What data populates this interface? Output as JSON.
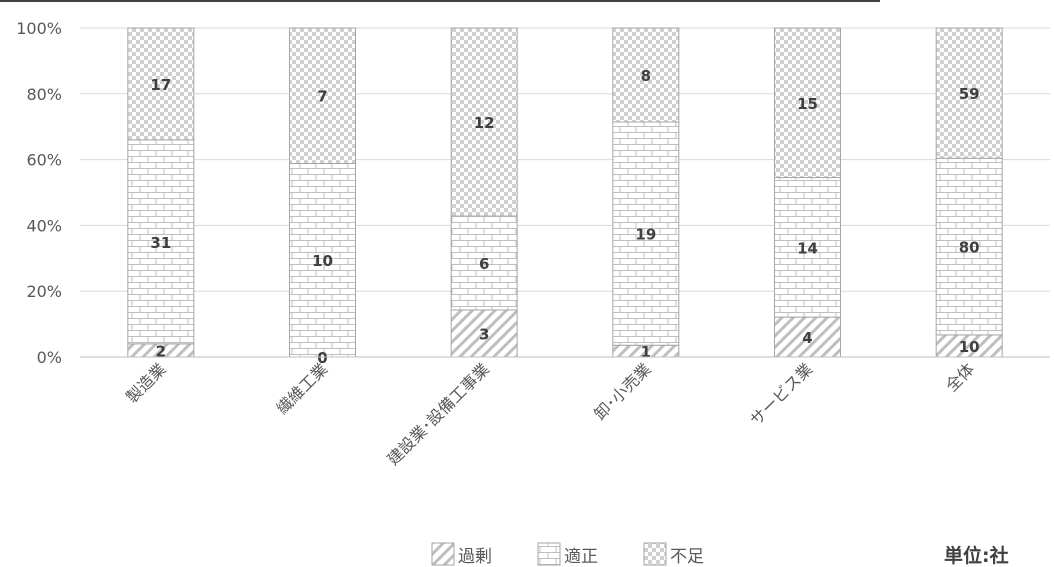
{
  "chart_data": {
    "type": "bar",
    "stacked": true,
    "normalized": true,
    "categories": [
      "製造業",
      "繊維工業",
      "建設業･設備工事業",
      "卸･小売業",
      "サービス業",
      "全体"
    ],
    "series": [
      {
        "name": "過剰",
        "values": [
          2,
          0,
          3,
          1,
          4,
          10
        ],
        "pattern": "diagonal"
      },
      {
        "name": "適正",
        "values": [
          31,
          10,
          6,
          19,
          14,
          80
        ],
        "pattern": "brick"
      },
      {
        "name": "不足",
        "values": [
          17,
          7,
          12,
          8,
          15,
          59
        ],
        "pattern": "checker"
      }
    ],
    "y_ticks": [
      "0%",
      "20%",
      "40%",
      "60%",
      "80%",
      "100%"
    ],
    "ylim": [
      0,
      100
    ],
    "legend_position": "bottom",
    "unit_label": "単位:社",
    "colors": {
      "pattern": "#bfbfbf",
      "border": "#a6a6a6",
      "grid": "#d9d9d9",
      "text": "#595959"
    }
  }
}
